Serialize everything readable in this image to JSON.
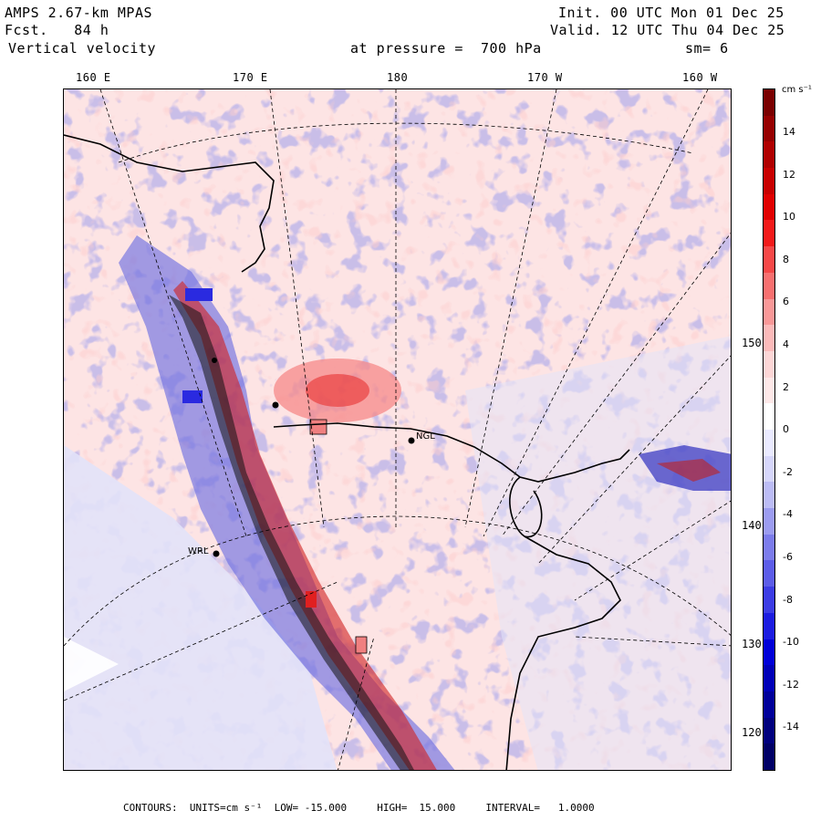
{
  "header": {
    "model": "AMPS 2.67-km MPAS",
    "forecast": "Fcst.   84 h",
    "field": "Vertical velocity",
    "init": "Init. 00 UTC Mon 01 Dec 25",
    "valid": "Valid. 12 UTC Thu 04 Dec 25",
    "pressure": "at pressure =  700 hPa",
    "smoothing": "sm= 6"
  },
  "longitude_labels": [
    "160 E",
    "170 E",
    "180",
    "170 W",
    "160 W"
  ],
  "latitude_labels": [
    "150 W",
    "140 W",
    "130 W",
    "120 W"
  ],
  "station_labels": [
    "NGL",
    "WRL"
  ],
  "colorbar": {
    "unit": "cm s⁻¹",
    "labels": [
      "14",
      "12",
      "10",
      "8",
      "6",
      "4",
      "2",
      "0",
      "-2",
      "-4",
      "-6",
      "-8",
      "-10",
      "-12",
      "-14"
    ],
    "colors": [
      "#7a0000",
      "#960000",
      "#b00000",
      "#c80000",
      "#e00000",
      "#f21a1a",
      "#f54848",
      "#f77070",
      "#f89898",
      "#fbbaba",
      "#fcd6d6",
      "#fde8e8",
      "#ffffff",
      "#eaeaff",
      "#d6d6fa",
      "#bcbcf5",
      "#9c9cf0",
      "#7c7ceb",
      "#5c5ce8",
      "#3c3ce4",
      "#1c1ce0",
      "#0000d8",
      "#0000b8",
      "#00009a",
      "#00007e",
      "#000066"
    ]
  },
  "footer": {
    "contours_label": "CONTOURS:",
    "units": "UNITS=cm s⁻¹",
    "low": "LOW= -15.000",
    "high": "HIGH=  15.000",
    "interval": "INTERVAL=   1.0000"
  }
}
